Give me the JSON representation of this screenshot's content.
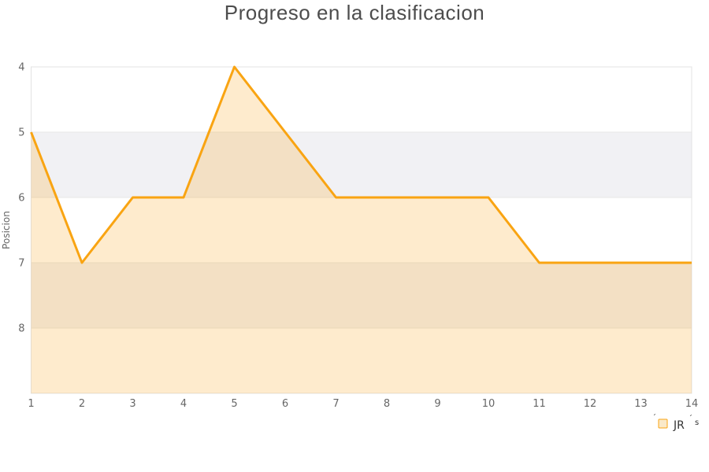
{
  "title": "Progreso en la clasificacion",
  "y_axis": {
    "label": "Posicion",
    "ticks": [
      4,
      5,
      6,
      7,
      8
    ]
  },
  "x_axis": {
    "ticks": [
      1,
      2,
      3,
      4,
      5,
      6,
      7,
      8,
      9,
      10,
      11,
      12,
      13,
      14
    ]
  },
  "legend": {
    "prefix_mark": "´",
    "label": "JR",
    "suffix_mark": "´",
    "suffix": "s",
    "full_name": "´JR´s"
  },
  "colors": {
    "line": "#F9A412",
    "fill": "rgba(249, 164, 27, 0.22)",
    "band": "#F1F1F4",
    "grid": "#E6E6E6",
    "border": "#E3E3E3",
    "tick_text": "#666666",
    "axis_title_text": "#666666",
    "title_text": "#4D4D4D",
    "legend_text": "#333333",
    "legend_marker_fill": "#FAE9C9"
  },
  "chart_data": {
    "type": "area",
    "title": "Progreso en la clasificacion",
    "xlabel": "",
    "ylabel": "Posicion",
    "x": [
      1,
      2,
      3,
      4,
      5,
      6,
      7,
      8,
      9,
      10,
      11,
      12,
      13,
      14
    ],
    "series": [
      {
        "name": "´JR´s",
        "values": [
          5,
          7,
          6,
          6,
          4,
          5,
          6,
          6,
          6,
          6,
          7,
          7,
          7,
          7
        ]
      }
    ],
    "y_inverted": true,
    "ylim": [
      4,
      9
    ],
    "y_ticks": [
      4,
      5,
      6,
      7,
      8
    ],
    "x_ticks": [
      1,
      2,
      3,
      4,
      5,
      6,
      7,
      8,
      9,
      10,
      11,
      12,
      13,
      14
    ],
    "grid": "horizontal",
    "alternating_bands_y": [
      [
        5,
        6
      ],
      [
        7,
        8
      ]
    ],
    "area_fills_to": "plot_bottom",
    "markers": "none",
    "legend_position": "bottom-right"
  }
}
